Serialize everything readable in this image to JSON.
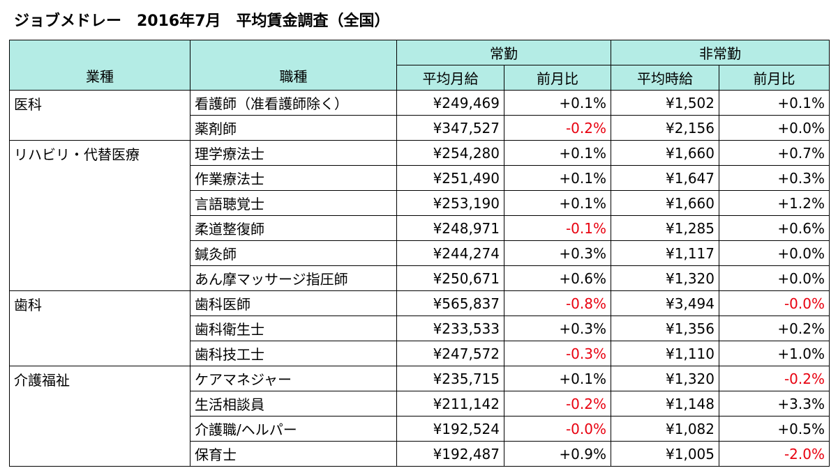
{
  "title": "ジョブメドレー　2016年7月　平均賃金調査（全国）",
  "header": {
    "industry": "業種",
    "job": "職種",
    "fulltime": "常勤",
    "parttime": "非常勤",
    "sub": [
      "平均月給",
      "前月比",
      "平均時給",
      "前月比"
    ]
  },
  "header_color": "#b4ece5",
  "negative_color": "#e8000f",
  "groups": [
    {
      "name": "医科",
      "rows": [
        [
          "看護師（准看護師除く）",
          "¥249,469",
          "+0.1%",
          "¥1,502",
          "+0.1%"
        ],
        [
          "薬剤師",
          "¥347,527",
          "-0.2%",
          "¥2,156",
          "+0.0%"
        ]
      ]
    },
    {
      "name": "リハビリ・代替医療",
      "rows": [
        [
          "理学療法士",
          "¥254,280",
          "+0.1%",
          "¥1,660",
          "+0.7%"
        ],
        [
          "作業療法士",
          "¥251,490",
          "+0.1%",
          "¥1,647",
          "+0.3%"
        ],
        [
          "言語聴覚士",
          "¥253,190",
          "+0.1%",
          "¥1,660",
          "+1.2%"
        ],
        [
          "柔道整復師",
          "¥248,971",
          "-0.1%",
          "¥1,285",
          "+0.6%"
        ],
        [
          "鍼灸師",
          "¥244,274",
          "+0.3%",
          "¥1,117",
          "+0.0%"
        ],
        [
          "あん摩マッサージ指圧師",
          "¥250,671",
          "+0.6%",
          "¥1,320",
          "+0.0%"
        ]
      ]
    },
    {
      "name": "歯科",
      "rows": [
        [
          "歯科医師",
          "¥565,837",
          "-0.8%",
          "¥3,494",
          "-0.0%"
        ],
        [
          "歯科衛生士",
          "¥233,533",
          "+0.3%",
          "¥1,356",
          "+0.2%"
        ],
        [
          "歯科技工士",
          "¥247,572",
          "-0.3%",
          "¥1,110",
          "+1.0%"
        ]
      ]
    },
    {
      "name": "介護福祉",
      "rows": [
        [
          "ケアマネジャー",
          "¥235,715",
          "+0.1%",
          "¥1,320",
          "-0.2%"
        ],
        [
          "生活相談員",
          "¥211,142",
          "-0.2%",
          "¥1,148",
          "+3.3%"
        ],
        [
          "介護職/ヘルパー",
          "¥192,524",
          "-0.0%",
          "¥1,082",
          "+0.5%"
        ],
        [
          "保育士",
          "¥192,487",
          "+0.9%",
          "¥1,005",
          "-2.0%"
        ]
      ]
    }
  ]
}
